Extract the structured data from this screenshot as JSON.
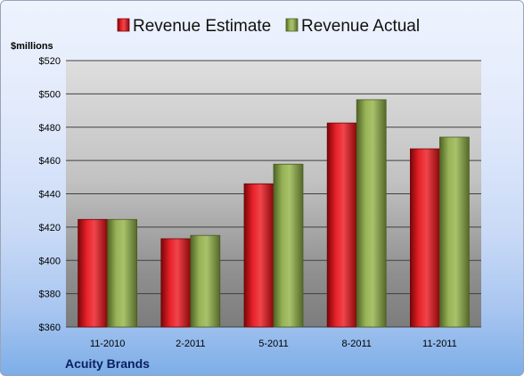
{
  "chart_data": {
    "type": "bar",
    "company": "Acuity Brands",
    "y_unit_label": "$millions",
    "categories": [
      "11-2010",
      "2-2011",
      "5-2011",
      "8-2011",
      "11-2011"
    ],
    "series": [
      {
        "name": "Revenue Estimate",
        "values": [
          424.6,
          413.0,
          446.0,
          482.5,
          467.0
        ],
        "color": "#d8141a"
      },
      {
        "name": "Revenue Actual",
        "values": [
          424.6,
          415.0,
          457.8,
          496.5,
          474.0
        ],
        "color": "#8aa64a"
      }
    ],
    "ylim": [
      360,
      520
    ],
    "y_ticks": [
      360,
      380,
      400,
      420,
      440,
      460,
      480,
      500,
      520
    ],
    "y_tick_format": "$",
    "grid": true,
    "legend_position": "top"
  }
}
